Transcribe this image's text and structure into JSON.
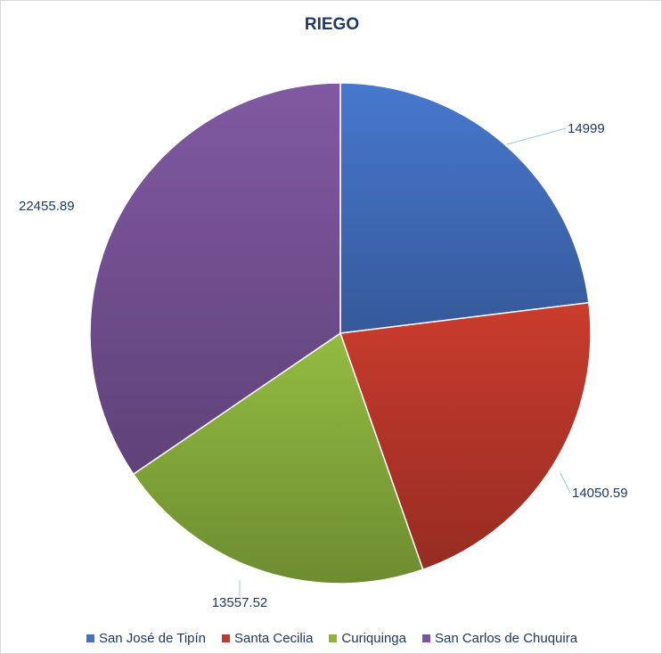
{
  "chart_data": {
    "type": "pie",
    "title": "RIEGO",
    "categories": [
      "San José de Tipín",
      "Santa Cecilia",
      "Curiquinga",
      "San Carlos de Chuquira"
    ],
    "values": [
      14999,
      14050.59,
      13557.52,
      22455.89
    ],
    "value_labels": [
      "14999",
      "14050.59",
      "13557.52",
      "22455.89"
    ],
    "colors": [
      "#4472c4",
      "#c0392b",
      "#8cb33e",
      "#7a559a"
    ],
    "start_angle_deg": 0,
    "direction": "clockwise",
    "legend_position": "bottom"
  }
}
